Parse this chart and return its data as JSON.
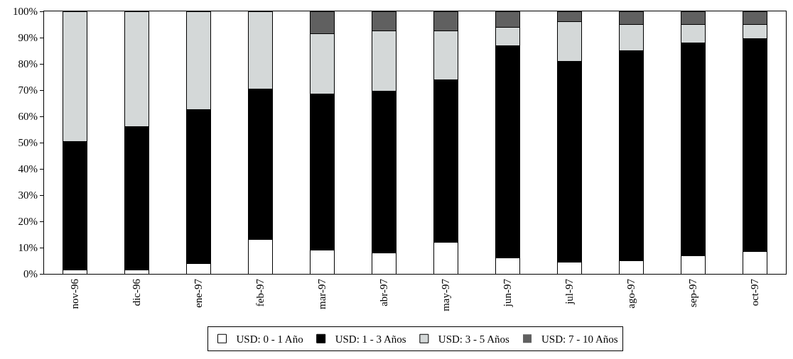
{
  "chart_data": {
    "type": "bar",
    "stacked": true,
    "categories": [
      "nov-96",
      "dic-96",
      "ene-97",
      "feb-97",
      "mar-97",
      "abr-97",
      "may-97",
      "jun-97",
      "jul-97",
      "ago-97",
      "sep-97",
      "oct-97"
    ],
    "series": [
      {
        "name": "USD: 0 - 1 Año",
        "color": "#ffffff",
        "values": [
          1.5,
          1.5,
          4,
          13,
          9,
          8,
          12,
          6,
          4.5,
          5,
          7,
          8.5
        ]
      },
      {
        "name": "USD: 1 - 3 Años",
        "color": "#000000",
        "values": [
          49,
          54.5,
          58.5,
          57.5,
          59.5,
          61.5,
          62,
          81,
          76.5,
          80,
          81,
          81
        ]
      },
      {
        "name": "USD: 3 - 5 Años",
        "color": "#d4d8d8",
        "values": [
          49.5,
          44,
          37.5,
          29.5,
          23,
          23,
          18.5,
          7,
          15,
          10,
          7,
          5.5
        ]
      },
      {
        "name": "USD: 7 - 10 Años",
        "color": "#606060",
        "values": [
          0,
          0,
          0,
          0,
          8.5,
          7.5,
          7.5,
          6,
          4,
          5,
          5,
          5
        ]
      }
    ],
    "ylim": [
      0,
      100
    ],
    "yticks": [
      {
        "value": 0,
        "label": "0%"
      },
      {
        "value": 10,
        "label": "10%"
      },
      {
        "value": 20,
        "label": "20%"
      },
      {
        "value": 30,
        "label": "30%"
      },
      {
        "value": 40,
        "label": "40%"
      },
      {
        "value": 50,
        "label": "50%"
      },
      {
        "value": 60,
        "label": "60%"
      },
      {
        "value": 70,
        "label": "70%"
      },
      {
        "value": 80,
        "label": "80%"
      },
      {
        "value": 90,
        "label": "90%"
      },
      {
        "value": 100,
        "label": "100%"
      }
    ],
    "grid": false,
    "legend": "bottom"
  }
}
